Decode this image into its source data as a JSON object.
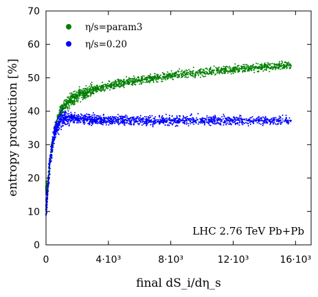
{
  "chart_data": {
    "type": "scatter",
    "title": "",
    "xlabel": "final dS_i/dη_s",
    "ylabel": "entropy production [%]",
    "xlim": [
      0,
      17000
    ],
    "ylim": [
      0,
      70
    ],
    "x_ticks": [
      {
        "value": 0,
        "label": "0"
      },
      {
        "value": 4000,
        "label": "4·10³"
      },
      {
        "value": 8000,
        "label": "8·10³"
      },
      {
        "value": 12000,
        "label": "12·10³"
      },
      {
        "value": 16000,
        "label": "16·10³"
      }
    ],
    "y_ticks": [
      {
        "value": 0,
        "label": "0"
      },
      {
        "value": 10,
        "label": "10"
      },
      {
        "value": 20,
        "label": "20"
      },
      {
        "value": 30,
        "label": "30"
      },
      {
        "value": 40,
        "label": "40"
      },
      {
        "value": 50,
        "label": "50"
      },
      {
        "value": 60,
        "label": "60"
      },
      {
        "value": 70,
        "label": "70"
      }
    ],
    "legend_position": "top-left",
    "annotation": "LHC 2.76 TeV Pb+Pb",
    "series": [
      {
        "name": "η/s=param3",
        "color": "#008000",
        "points": [
          [
            100,
            17
          ],
          [
            200,
            23
          ],
          [
            300,
            27
          ],
          [
            450,
            31
          ],
          [
            600,
            35
          ],
          [
            800,
            38
          ],
          [
            1000,
            40.5
          ],
          [
            1300,
            42
          ],
          [
            1600,
            43.5
          ],
          [
            2000,
            44.5
          ],
          [
            2500,
            45.5
          ],
          [
            3000,
            46.5
          ],
          [
            4000,
            47.5
          ],
          [
            5000,
            48.5
          ],
          [
            6000,
            49.3
          ],
          [
            7000,
            50
          ],
          [
            8000,
            50.6
          ],
          [
            9000,
            51.2
          ],
          [
            10000,
            51.7
          ],
          [
            11000,
            52.2
          ],
          [
            12000,
            52.6
          ],
          [
            13000,
            53
          ],
          [
            14000,
            53.3
          ],
          [
            15000,
            53.6
          ],
          [
            15700,
            53.6
          ]
        ]
      },
      {
        "name": "η/s=0.20",
        "color": "#0000ff",
        "points": [
          [
            50,
            12
          ],
          [
            100,
            16
          ],
          [
            200,
            22
          ],
          [
            300,
            27
          ],
          [
            450,
            31
          ],
          [
            600,
            34
          ],
          [
            800,
            36.5
          ],
          [
            1000,
            37.5
          ],
          [
            1300,
            38
          ],
          [
            1600,
            38
          ],
          [
            2000,
            37.8
          ],
          [
            2500,
            37.6
          ],
          [
            3000,
            37.5
          ],
          [
            4000,
            37.4
          ],
          [
            5000,
            37.3
          ],
          [
            6000,
            37.2
          ],
          [
            7000,
            37.2
          ],
          [
            8000,
            37.2
          ],
          [
            9000,
            37.2
          ],
          [
            10000,
            37.2
          ],
          [
            11000,
            37.2
          ],
          [
            12000,
            37.2
          ],
          [
            13000,
            37.2
          ],
          [
            14000,
            37.2
          ],
          [
            15000,
            37.2
          ],
          [
            15700,
            37.2
          ]
        ]
      }
    ]
  }
}
